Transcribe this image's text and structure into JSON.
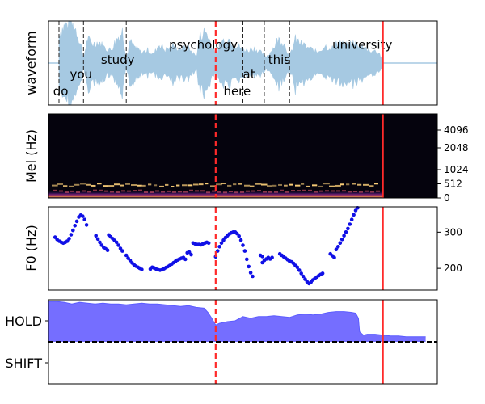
{
  "chart_data": [
    {
      "type": "area",
      "panel": "waveform",
      "ylabel": "waveform",
      "xlim": [
        0,
        10
      ],
      "words": [
        {
          "text": "do",
          "x": 0.12,
          "y": -0.65
        },
        {
          "text": "you",
          "x": 0.55,
          "y": -0.25
        },
        {
          "text": "study",
          "x": 1.35,
          "y": 0.1
        },
        {
          "text": "psychology",
          "x": 3.1,
          "y": 0.45
        },
        {
          "text": "here",
          "x": 4.5,
          "y": -0.65
        },
        {
          "text": "at",
          "x": 5.0,
          "y": -0.25
        },
        {
          "text": "this",
          "x": 5.65,
          "y": 0.1
        },
        {
          "text": "university",
          "x": 7.3,
          "y": 0.45
        }
      ],
      "word_boundaries": [
        0.27,
        0.9,
        2.0,
        5.0,
        5.55,
        6.2
      ],
      "current_time": 4.3,
      "end_time": 8.6,
      "envelope": [
        [
          0.27,
          0.7
        ],
        [
          0.4,
          0.85
        ],
        [
          0.55,
          0.95
        ],
        [
          0.7,
          0.8
        ],
        [
          0.85,
          0.4
        ],
        [
          0.9,
          0.1
        ],
        [
          1.0,
          0.55
        ],
        [
          1.15,
          0.45
        ],
        [
          1.3,
          0.5
        ],
        [
          1.45,
          0.35
        ],
        [
          1.6,
          0.3
        ],
        [
          1.75,
          0.55
        ],
        [
          1.9,
          0.75
        ],
        [
          2.0,
          0.1
        ],
        [
          2.1,
          0.5
        ],
        [
          2.25,
          0.35
        ],
        [
          2.4,
          0.25
        ],
        [
          2.55,
          0.3
        ],
        [
          2.7,
          0.2
        ],
        [
          2.85,
          0.45
        ],
        [
          3.0,
          0.3
        ],
        [
          3.2,
          0.4
        ],
        [
          3.4,
          0.35
        ],
        [
          3.6,
          0.35
        ],
        [
          3.8,
          0.15
        ],
        [
          3.9,
          0.65
        ],
        [
          4.05,
          0.75
        ],
        [
          4.2,
          0.4
        ],
        [
          4.35,
          0.2
        ],
        [
          4.4,
          0.45
        ],
        [
          4.6,
          0.6
        ],
        [
          4.8,
          0.45
        ],
        [
          4.95,
          0.35
        ],
        [
          5.1,
          0.3
        ],
        [
          5.3,
          0.35
        ],
        [
          5.45,
          0.25
        ],
        [
          5.6,
          0.15
        ],
        [
          5.75,
          0.3
        ],
        [
          5.9,
          0.55
        ],
        [
          6.05,
          0.5
        ],
        [
          6.2,
          0.15
        ],
        [
          6.35,
          0.55
        ],
        [
          6.5,
          0.45
        ],
        [
          6.7,
          0.35
        ],
        [
          6.9,
          0.25
        ],
        [
          7.1,
          0.4
        ],
        [
          7.3,
          0.35
        ],
        [
          7.5,
          0.5
        ],
        [
          7.7,
          0.4
        ],
        [
          7.9,
          0.45
        ],
        [
          8.1,
          0.35
        ],
        [
          8.3,
          0.3
        ],
        [
          8.5,
          0.25
        ],
        [
          8.6,
          0.04
        ]
      ]
    },
    {
      "type": "heatmap",
      "panel": "mel-spectrogram",
      "ylabel": "Mel (Hz)",
      "yticks": [
        "0",
        "512",
        "1024",
        "2048",
        "4096"
      ],
      "current_time": 4.3,
      "end_time": 8.6
    },
    {
      "type": "scatter",
      "panel": "f0",
      "ylabel": "F0 (Hz)",
      "ylim": [
        140,
        370
      ],
      "yticks": [
        200,
        300
      ],
      "current_time": 4.3,
      "end_time": 8.6,
      "points": [
        [
          0.17,
          286
        ],
        [
          0.22,
          280
        ],
        [
          0.28,
          275
        ],
        [
          0.33,
          272
        ],
        [
          0.38,
          270
        ],
        [
          0.43,
          272
        ],
        [
          0.48,
          275
        ],
        [
          0.53,
          282
        ],
        [
          0.58,
          293
        ],
        [
          0.63,
          305
        ],
        [
          0.68,
          318
        ],
        [
          0.73,
          330
        ],
        [
          0.78,
          342
        ],
        [
          0.83,
          347
        ],
        [
          0.88,
          344
        ],
        [
          0.93,
          335
        ],
        [
          0.98,
          320
        ],
        [
          1.22,
          290
        ],
        [
          1.27,
          281
        ],
        [
          1.32,
          272
        ],
        [
          1.37,
          264
        ],
        [
          1.42,
          258
        ],
        [
          1.47,
          254
        ],
        [
          1.52,
          250
        ],
        [
          1.55,
          292
        ],
        [
          1.6,
          287
        ],
        [
          1.65,
          282
        ],
        [
          1.7,
          277
        ],
        [
          1.75,
          272
        ],
        [
          1.8,
          264
        ],
        [
          1.85,
          255
        ],
        [
          1.9,
          248
        ],
        [
          2.0,
          236
        ],
        [
          2.05,
          228
        ],
        [
          2.1,
          222
        ],
        [
          2.15,
          215
        ],
        [
          2.2,
          210
        ],
        [
          2.25,
          206
        ],
        [
          2.3,
          203
        ],
        [
          2.35,
          200
        ],
        [
          2.4,
          197
        ],
        [
          2.62,
          198
        ],
        [
          2.67,
          203
        ],
        [
          2.72,
          201
        ],
        [
          2.77,
          198
        ],
        [
          2.82,
          196
        ],
        [
          2.87,
          195
        ],
        [
          2.92,
          196
        ],
        [
          2.97,
          199
        ],
        [
          3.02,
          202
        ],
        [
          3.07,
          205
        ],
        [
          3.12,
          208
        ],
        [
          3.17,
          212
        ],
        [
          3.22,
          216
        ],
        [
          3.27,
          220
        ],
        [
          3.32,
          223
        ],
        [
          3.37,
          226
        ],
        [
          3.42,
          228
        ],
        [
          3.47,
          230
        ],
        [
          3.52,
          225
        ],
        [
          3.57,
          243
        ],
        [
          3.62,
          245
        ],
        [
          3.67,
          238
        ],
        [
          3.72,
          270
        ],
        [
          3.77,
          268
        ],
        [
          3.82,
          266
        ],
        [
          3.87,
          266
        ],
        [
          3.92,
          265
        ],
        [
          3.97,
          268
        ],
        [
          4.02,
          270
        ],
        [
          4.07,
          272
        ],
        [
          4.12,
          270
        ],
        [
          4.3,
          232
        ],
        [
          4.35,
          248
        ],
        [
          4.4,
          260
        ],
        [
          4.45,
          270
        ],
        [
          4.5,
          278
        ],
        [
          4.55,
          285
        ],
        [
          4.6,
          290
        ],
        [
          4.65,
          295
        ],
        [
          4.7,
          298
        ],
        [
          4.75,
          300
        ],
        [
          4.8,
          300
        ],
        [
          4.85,
          296
        ],
        [
          4.9,
          289
        ],
        [
          4.95,
          278
        ],
        [
          5.0,
          264
        ],
        [
          5.05,
          248
        ],
        [
          5.1,
          225
        ],
        [
          5.15,
          205
        ],
        [
          5.2,
          188
        ],
        [
          5.25,
          178
        ],
        [
          5.5,
          216
        ],
        [
          5.55,
          222
        ],
        [
          5.6,
          226
        ],
        [
          5.65,
          230
        ],
        [
          5.7,
          226
        ],
        [
          5.75,
          230
        ],
        [
          5.45,
          236
        ],
        [
          5.5,
          233
        ],
        [
          5.95,
          240
        ],
        [
          6.0,
          236
        ],
        [
          6.05,
          232
        ],
        [
          6.1,
          228
        ],
        [
          6.15,
          224
        ],
        [
          6.2,
          220
        ],
        [
          6.25,
          218
        ],
        [
          6.3,
          214
        ],
        [
          6.35,
          208
        ],
        [
          6.4,
          203
        ],
        [
          6.45,
          195
        ],
        [
          6.5,
          186
        ],
        [
          6.55,
          178
        ],
        [
          6.6,
          170
        ],
        [
          6.65,
          163
        ],
        [
          6.7,
          158
        ],
        [
          6.75,
          162
        ],
        [
          6.8,
          168
        ],
        [
          6.85,
          172
        ],
        [
          6.9,
          176
        ],
        [
          6.95,
          180
        ],
        [
          7.0,
          183
        ],
        [
          7.05,
          186
        ],
        [
          7.25,
          240
        ],
        [
          7.3,
          235
        ],
        [
          7.35,
          230
        ],
        [
          7.4,
          252
        ],
        [
          7.45,
          260
        ],
        [
          7.5,
          270
        ],
        [
          7.55,
          280
        ],
        [
          7.6,
          290
        ],
        [
          7.65,
          300
        ],
        [
          7.7,
          310
        ],
        [
          7.75,
          322
        ],
        [
          7.8,
          335
        ],
        [
          7.85,
          348
        ],
        [
          7.9,
          360
        ],
        [
          7.95,
          367
        ]
      ]
    },
    {
      "type": "area",
      "panel": "turn-taking",
      "yticks": [
        "HOLD",
        "SHIFT"
      ],
      "threshold": 0.5,
      "current_time": 4.3,
      "end_time": 8.6,
      "values": [
        [
          0,
          0.98
        ],
        [
          0.2,
          0.98
        ],
        [
          0.4,
          0.97
        ],
        [
          0.6,
          0.95
        ],
        [
          0.8,
          0.97
        ],
        [
          1.0,
          0.96
        ],
        [
          1.2,
          0.95
        ],
        [
          1.4,
          0.96
        ],
        [
          1.6,
          0.95
        ],
        [
          1.8,
          0.95
        ],
        [
          2.0,
          0.94
        ],
        [
          2.2,
          0.95
        ],
        [
          2.4,
          0.96
        ],
        [
          2.6,
          0.95
        ],
        [
          2.8,
          0.95
        ],
        [
          3.0,
          0.94
        ],
        [
          3.2,
          0.93
        ],
        [
          3.4,
          0.92
        ],
        [
          3.6,
          0.93
        ],
        [
          3.8,
          0.91
        ],
        [
          4.0,
          0.9
        ],
        [
          4.1,
          0.85
        ],
        [
          4.2,
          0.78
        ],
        [
          4.3,
          0.7
        ],
        [
          4.4,
          0.72
        ],
        [
          4.6,
          0.74
        ],
        [
          4.8,
          0.75
        ],
        [
          5.0,
          0.8
        ],
        [
          5.2,
          0.78
        ],
        [
          5.4,
          0.8
        ],
        [
          5.6,
          0.8
        ],
        [
          5.8,
          0.81
        ],
        [
          6.0,
          0.8
        ],
        [
          6.2,
          0.79
        ],
        [
          6.4,
          0.82
        ],
        [
          6.6,
          0.83
        ],
        [
          6.8,
          0.82
        ],
        [
          7.0,
          0.83
        ],
        [
          7.2,
          0.85
        ],
        [
          7.4,
          0.86
        ],
        [
          7.6,
          0.86
        ],
        [
          7.8,
          0.85
        ],
        [
          7.9,
          0.84
        ],
        [
          7.97,
          0.78
        ],
        [
          8.0,
          0.62
        ],
        [
          8.1,
          0.58
        ],
        [
          8.2,
          0.59
        ],
        [
          8.4,
          0.59
        ],
        [
          8.6,
          0.58
        ],
        [
          8.8,
          0.57
        ],
        [
          9.0,
          0.57
        ],
        [
          9.2,
          0.56
        ],
        [
          9.5,
          0.56
        ],
        [
          9.7,
          0.56
        ]
      ],
      "fill_color": "#6e66ff",
      "line_color": "#5c5cff"
    }
  ],
  "colors": {
    "wave": "#a6c9e2",
    "marker": "#ff2a2a",
    "points": "#1010e6"
  }
}
